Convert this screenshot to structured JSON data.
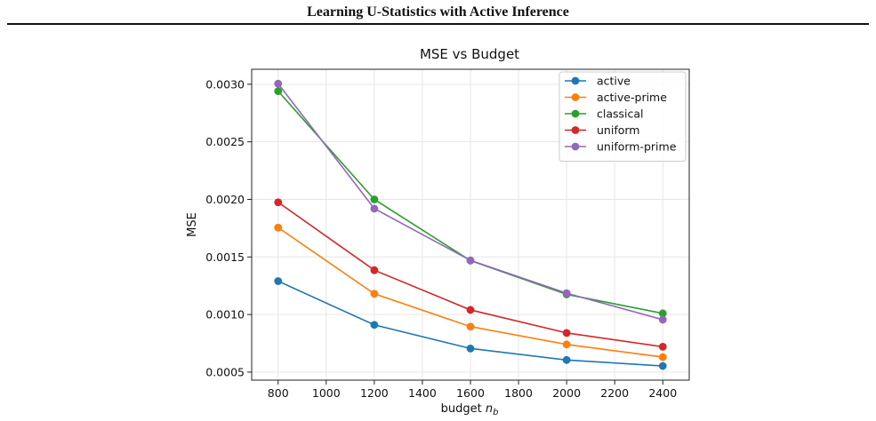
{
  "page_header": "Learning U-Statistics with Active Inference",
  "chart_data": {
    "type": "line",
    "title": "MSE vs Budget",
    "xlabel": "budget",
    "xlabel_sub": "b",
    "xlabel_var": "n",
    "ylabel": "MSE",
    "x": [
      800,
      1200,
      1600,
      2000,
      2400
    ],
    "xlim": [
      690,
      2510
    ],
    "ylim": [
      0.00043,
      0.00313
    ],
    "xticks": [
      800,
      1000,
      1200,
      1400,
      1600,
      1800,
      2000,
      2200,
      2400
    ],
    "yticks": [
      0.0005,
      0.001,
      0.0015,
      0.002,
      0.0025,
      0.003
    ],
    "yticks_labels": [
      "0.0005",
      "0.0010",
      "0.0015",
      "0.0020",
      "0.0025",
      "0.0030"
    ],
    "grid": true,
    "legend_position": "top-right",
    "series": [
      {
        "name": "active",
        "color": "#1f77b4",
        "values": [
          0.00129,
          0.00091,
          0.000705,
          0.000605,
          0.000553
        ]
      },
      {
        "name": "active-prime",
        "color": "#ff7f0e",
        "values": [
          0.001755,
          0.00118,
          0.000895,
          0.00074,
          0.00063
        ]
      },
      {
        "name": "classical",
        "color": "#2ca02c",
        "values": [
          0.00294,
          0.002,
          0.001468,
          0.001175,
          0.00101
        ]
      },
      {
        "name": "uniform",
        "color": "#d62728",
        "values": [
          0.001975,
          0.001385,
          0.00104,
          0.00084,
          0.00072
        ]
      },
      {
        "name": "uniform-prime",
        "color": "#9467bd",
        "values": [
          0.003005,
          0.00192,
          0.00147,
          0.001185,
          0.000955
        ]
      }
    ]
  }
}
